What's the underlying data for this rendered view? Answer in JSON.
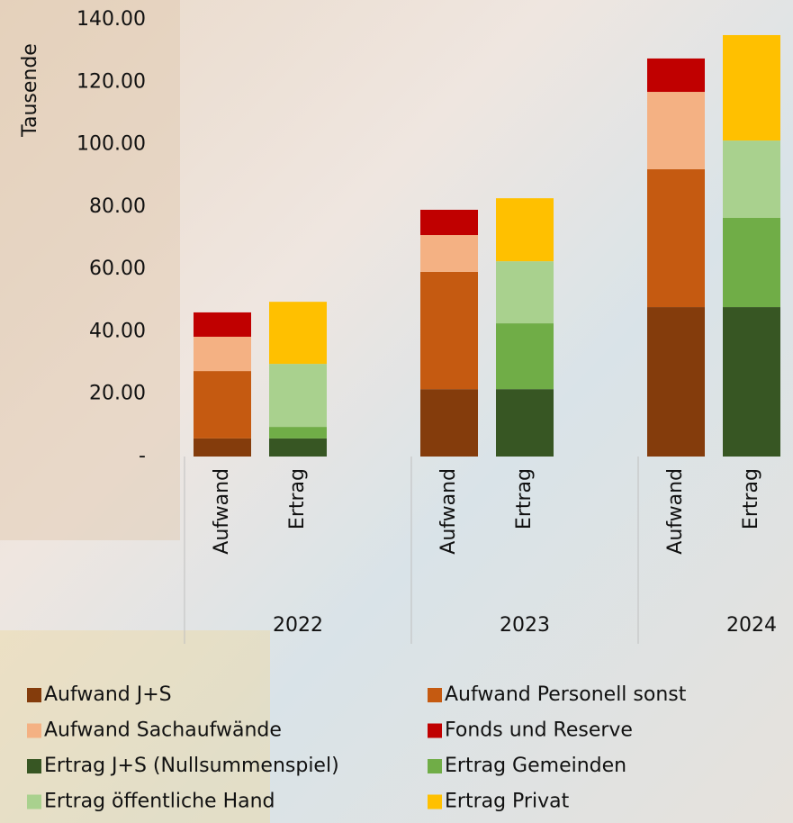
{
  "chart_data": {
    "type": "bar",
    "stacked": true,
    "y_label": "Tausende",
    "groups": [
      "2022",
      "2023",
      "2024"
    ],
    "categories": [
      "Aufwand",
      "Ertrag",
      "Aufwand",
      "Ertrag",
      "Aufwand",
      "Ertrag"
    ],
    "ylim": [
      0,
      140
    ],
    "yticks": [
      {
        "value": 0,
        "label": "-"
      },
      {
        "value": 20,
        "label": "20.00"
      },
      {
        "value": 40,
        "label": "40.00"
      },
      {
        "value": 60,
        "label": "60.00"
      },
      {
        "value": 80,
        "label": "80.00"
      },
      {
        "value": 100,
        "label": "100.00"
      },
      {
        "value": 120,
        "label": "120.00"
      },
      {
        "value": 140,
        "label": "140.00"
      }
    ],
    "grid": false,
    "series": [
      {
        "name": "Aufwand J+S",
        "color": "#843c0c",
        "values": [
          5.8,
          null,
          21.6,
          null,
          47.9,
          null
        ]
      },
      {
        "name": "Aufwand Personell sonst",
        "color": "#c55a11",
        "values": [
          21.6,
          null,
          37.6,
          null,
          44.2,
          null
        ]
      },
      {
        "name": "Aufwand Sachaufwände",
        "color": "#f4b183",
        "values": [
          11,
          null,
          11.8,
          null,
          24.8,
          null
        ]
      },
      {
        "name": "Fonds und Reserve",
        "color": "#c00000",
        "values": [
          7.8,
          null,
          8.1,
          null,
          10.7,
          null
        ]
      },
      {
        "name": "Ertrag J+S (Nullsummenspiel)",
        "color": "#375623",
        "values": [
          null,
          5.8,
          null,
          21.6,
          null,
          47.9
        ]
      },
      {
        "name": "Ertrag Gemeinden",
        "color": "#70ad47",
        "values": [
          null,
          3.7,
          null,
          21.1,
          null,
          28.6
        ]
      },
      {
        "name": "Ertrag öffentliche Hand",
        "color": "#a9d18e",
        "values": [
          null,
          20.2,
          null,
          19.9,
          null,
          24.8
        ]
      },
      {
        "name": "Ertrag Privat",
        "color": "#ffc000",
        "values": [
          null,
          19.9,
          null,
          20.2,
          null,
          33.8
        ]
      }
    ]
  }
}
